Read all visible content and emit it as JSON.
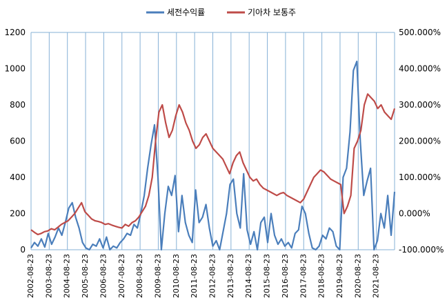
{
  "chart_data": {
    "type": "line",
    "title": "",
    "xlabel": "",
    "ylabel": "",
    "legend_position": "top",
    "grid": "vertical",
    "colors": {
      "series1": "#4a7ebb",
      "series2": "#be4b48",
      "grid": "#86b0d6"
    },
    "x_ticks": [
      "2002-08-23",
      "2003-08-23",
      "2004-08-23",
      "2005-08-23",
      "2006-08-23",
      "2007-08-23",
      "2008-08-23",
      "2009-08-23",
      "2010-08-23",
      "2011-08-23",
      "2012-08-23",
      "2013-08-23",
      "2014-08-23",
      "2015-08-23",
      "2016-08-23",
      "2017-08-23",
      "2018-08-23",
      "2019-08-23",
      "2020-08-23",
      "2021-08-23"
    ],
    "left_axis": {
      "ylim": [
        0,
        1200
      ],
      "ticks": [
        "0",
        "200",
        "400",
        "600",
        "800",
        "1000",
        "1200"
      ]
    },
    "right_axis": {
      "ylim": [
        -100,
        500
      ],
      "ticks": [
        "-100.000%",
        "0.000%",
        "100.000%",
        "200.000%",
        "300.000%",
        "400.000%",
        "500.000%"
      ]
    },
    "series": [
      {
        "name": "세전수익률",
        "axis": "left",
        "values": [
          10,
          40,
          20,
          60,
          15,
          90,
          30,
          70,
          120,
          80,
          150,
          230,
          260,
          180,
          120,
          40,
          10,
          0,
          30,
          20,
          60,
          10,
          70,
          0,
          20,
          10,
          40,
          60,
          90,
          80,
          140,
          120,
          200,
          300,
          450,
          580,
          690,
          400,
          0,
          200,
          350,
          300,
          410,
          100,
          300,
          150,
          80,
          40,
          330,
          150,
          180,
          250,
          120,
          20,
          50,
          0,
          100,
          200,
          360,
          390,
          200,
          120,
          420,
          110,
          30,
          100,
          0,
          150,
          180,
          40,
          200,
          80,
          30,
          60,
          20,
          40,
          10,
          90,
          110,
          240,
          200,
          90,
          10,
          0,
          20,
          80,
          60,
          120,
          100,
          20,
          0,
          400,
          450,
          650,
          990,
          1040,
          600,
          300,
          380,
          450,
          0,
          50,
          200,
          120,
          300,
          80,
          320
        ]
      },
      {
        "name": "기아차 보통주",
        "axis": "right",
        "values": [
          -45,
          -52,
          -58,
          -55,
          -50,
          -48,
          -42,
          -45,
          -38,
          -30,
          -25,
          -20,
          -10,
          0,
          15,
          30,
          5,
          -5,
          -15,
          -20,
          -22,
          -25,
          -30,
          -28,
          -32,
          -35,
          -38,
          -40,
          -30,
          -35,
          -25,
          -20,
          -10,
          5,
          20,
          50,
          100,
          200,
          280,
          300,
          250,
          210,
          230,
          270,
          300,
          280,
          250,
          230,
          200,
          180,
          190,
          210,
          220,
          200,
          180,
          170,
          160,
          150,
          130,
          110,
          140,
          160,
          170,
          140,
          120,
          100,
          90,
          95,
          80,
          70,
          65,
          60,
          55,
          50,
          55,
          58,
          50,
          45,
          40,
          35,
          30,
          40,
          60,
          80,
          100,
          110,
          120,
          115,
          105,
          95,
          90,
          85,
          80,
          0,
          20,
          50,
          180,
          200,
          230,
          300,
          330,
          320,
          310,
          290,
          300,
          280,
          270,
          260,
          290
        ]
      }
    ]
  }
}
